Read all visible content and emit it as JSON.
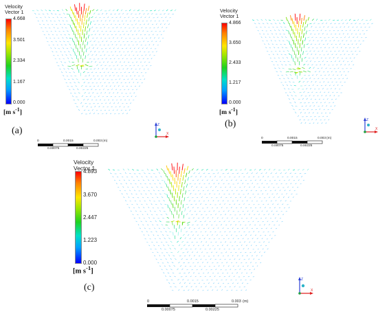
{
  "panels": [
    {
      "id": "a",
      "label": "(a)",
      "legend_title_1": "Velocity",
      "legend_title_2": "Vector 1",
      "ticks": [
        "4.668",
        "3.501",
        "2.334",
        "1.167",
        "0.000"
      ],
      "units": "[m s^-1]",
      "scale_top": [
        "0",
        "0.0015",
        "0.003",
        "(m)"
      ],
      "scale_bottom": [
        "0.00075",
        "0.00225"
      ]
    },
    {
      "id": "b",
      "label": "(b)",
      "legend_title_1": "Velocity",
      "legend_title_2": "Vector 1",
      "ticks": [
        "4.866",
        "3.650",
        "2.433",
        "1.217",
        "0.000"
      ],
      "units": "[m s^-1]",
      "scale_top": [
        "0",
        "0.0015",
        "0.003",
        "(m)"
      ],
      "scale_bottom": [
        "0.00075",
        "0.00225"
      ]
    },
    {
      "id": "c",
      "label": "(c)",
      "legend_title_1": "Velocity",
      "legend_title_2": "Vector 1",
      "ticks": [
        "4.893",
        "3.670",
        "2.447",
        "1.223",
        "0.000"
      ],
      "units": "[m s^-1]",
      "scale_top": [
        "0",
        "0.0015",
        "0.003",
        "(m)"
      ],
      "scale_bottom": [
        "0.00075",
        "0.00225"
      ]
    }
  ],
  "axis_triad": {
    "z": "Z",
    "x": "X"
  },
  "colors": {
    "axis_z": "#2a3fd6",
    "axis_x": "#e02020",
    "axis_y": "#20a040"
  }
}
